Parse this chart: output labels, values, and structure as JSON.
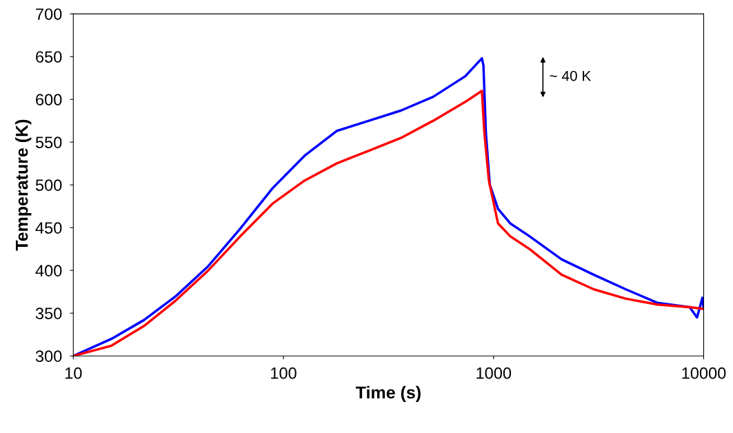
{
  "chart_data": {
    "type": "line",
    "xlabel": "Time (s)",
    "ylabel": "Temperature (K)",
    "log": "x",
    "xlim": [
      10,
      10000
    ],
    "xticks": [
      10,
      100,
      1000,
      10000
    ],
    "ylim": [
      300,
      700
    ],
    "yticks": [
      300,
      350,
      400,
      450,
      500,
      550,
      600,
      650,
      700
    ],
    "grid": false,
    "marker": "none",
    "line_style": "solid",
    "annotations": [
      "~ 40 K"
    ],
    "series": [
      {
        "color": "#0000ff",
        "x": [
          10,
          15.2,
          21.7,
          30.8,
          43.9,
          62.4,
          88.7,
          126,
          179,
          255,
          363,
          516,
          733,
          880,
          895,
          920,
          960,
          1050,
          1200,
          1483,
          2107,
          2993,
          4252,
          6040,
          8578,
          9300,
          9860,
          10000
        ],
        "values": [
          300,
          320,
          342,
          370,
          405,
          449,
          496,
          534,
          563,
          575,
          587,
          603,
          627,
          648,
          640,
          560,
          500,
          472,
          455,
          440,
          413,
          395,
          378,
          362,
          357,
          345,
          368,
          355
        ]
      },
      {
        "color": "#ff0000",
        "x": [
          10,
          15.2,
          21.7,
          30.8,
          43.9,
          62.4,
          88.7,
          126,
          179,
          255,
          363,
          516,
          733,
          880,
          905,
          950,
          1050,
          1200,
          1483,
          2107,
          2993,
          4252,
          6040,
          8578,
          10000
        ],
        "values": [
          300,
          312,
          335,
          365,
          400,
          440,
          478,
          505,
          525,
          540,
          555,
          575,
          597,
          610,
          560,
          505,
          455,
          440,
          425,
          395,
          378,
          367,
          360,
          357,
          355
        ]
      }
    ]
  }
}
